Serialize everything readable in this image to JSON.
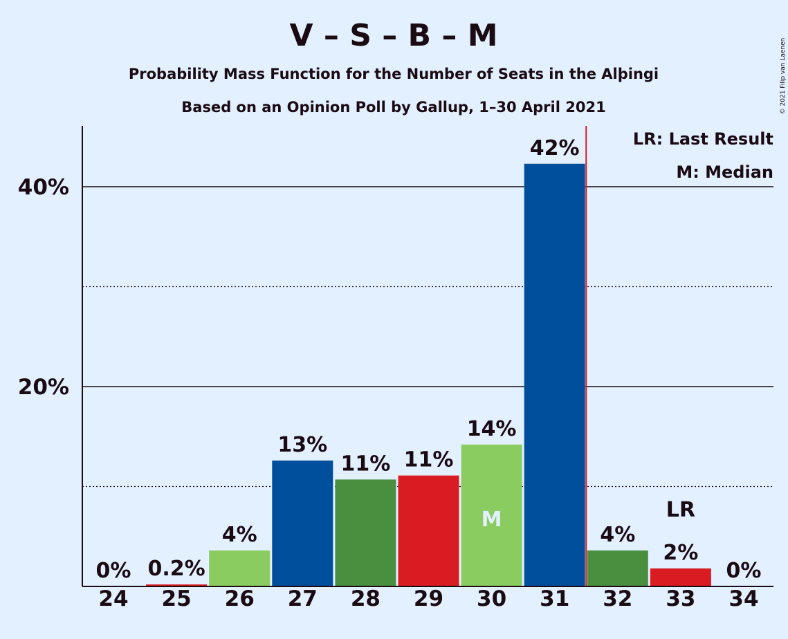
{
  "chart_data": {
    "type": "bar",
    "title": "V – S – B – M",
    "subtitle": "Probability Mass Function for the Number of Seats in the Alþingi",
    "subtitle2": "Based on an Opinion Poll by Gallup, 1–30 April 2021",
    "copyright": "© 2021 Filip van Laenen",
    "categories": [
      "24",
      "25",
      "26",
      "27",
      "28",
      "29",
      "30",
      "31",
      "32",
      "33",
      "34"
    ],
    "values": [
      0,
      0.2,
      3.6,
      12.6,
      10.7,
      11.1,
      14.2,
      42.3,
      3.6,
      1.8,
      0
    ],
    "labels": [
      "0%",
      "0.2%",
      "4%",
      "13%",
      "11%",
      "11%",
      "14%",
      "42%",
      "4%",
      "2%",
      "0%"
    ],
    "bar_colors": [
      "#8bcc60",
      "#d91b22",
      "#8bcc60",
      "#004f9c",
      "#4a8f3f",
      "#d91b22",
      "#8bcc60",
      "#004f9c",
      "#4a8f3f",
      "#d91b22",
      "#8bcc60"
    ],
    "ylim": [
      0,
      46
    ],
    "yticks": [
      {
        "value": 20,
        "label": "20%"
      },
      {
        "value": 40,
        "label": "40%"
      }
    ],
    "dotted_gridlines": [
      10,
      30
    ],
    "median_category": "30",
    "median_marker": "M",
    "last_result_category": "33",
    "last_result_marker": "LR",
    "last_result_line_after_category": "31",
    "legend": {
      "lr": "LR: Last Result",
      "m": "M: Median"
    },
    "colors": {
      "background": "#e3f0ff",
      "text": "#1a0a12",
      "lr_line": "#d91b22",
      "median_text": "#e3f0ff"
    }
  }
}
